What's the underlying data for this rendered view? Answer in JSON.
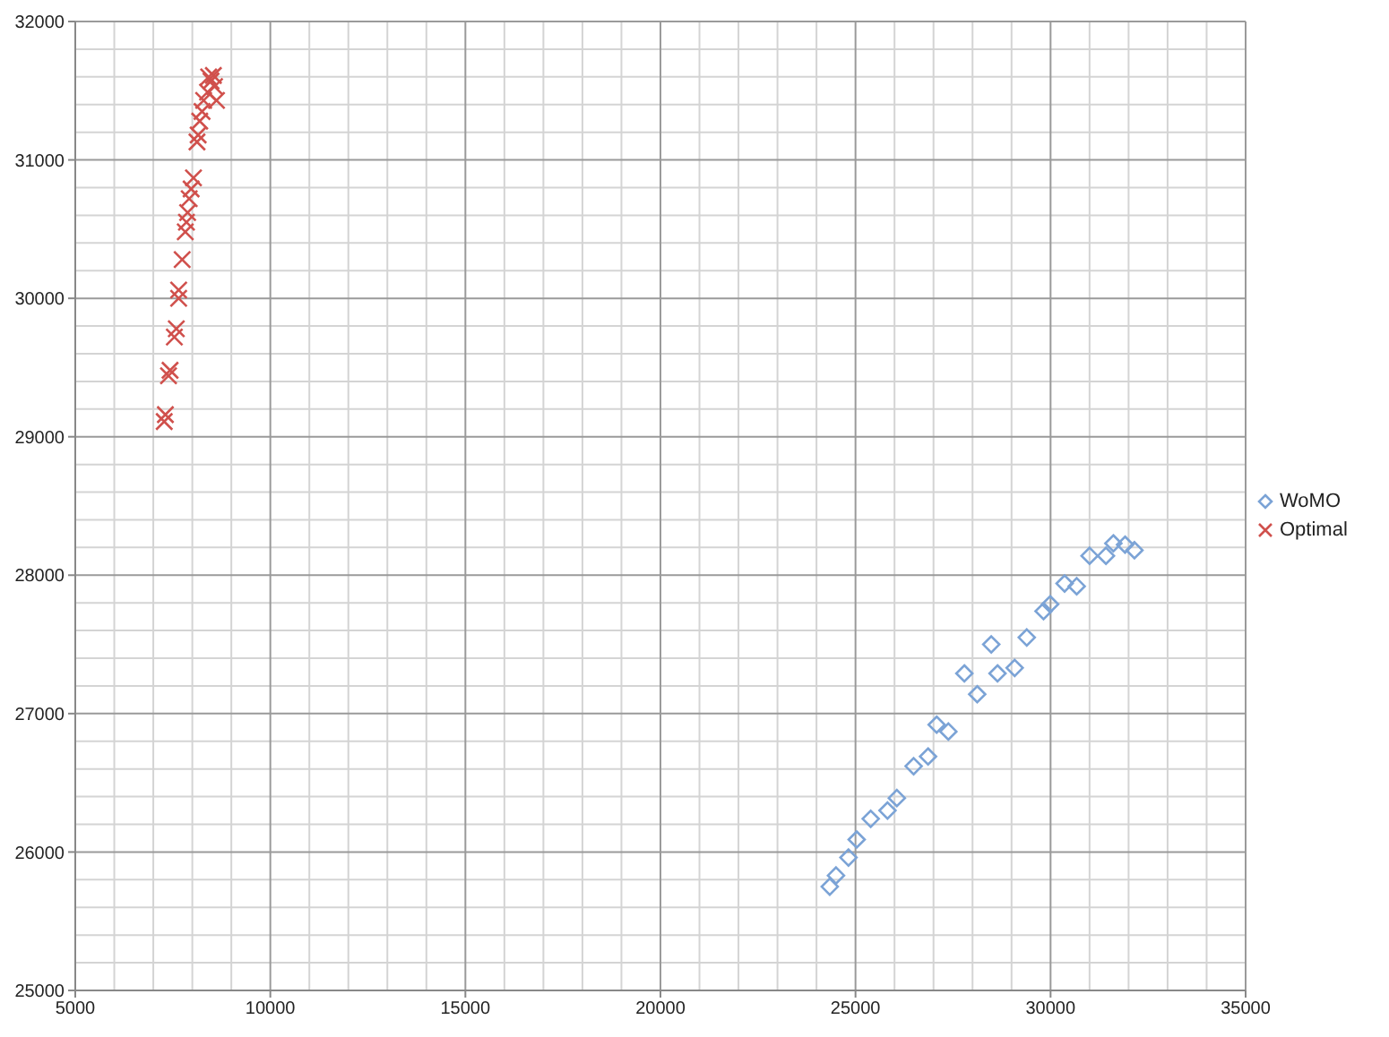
{
  "chart_data": {
    "type": "scatter",
    "xlim": [
      5000,
      35000
    ],
    "xticks": [
      5000,
      10000,
      15000,
      20000,
      25000,
      30000,
      35000
    ],
    "ylim": [
      25000,
      32000
    ],
    "yticks": [
      25000,
      26000,
      27000,
      28000,
      29000,
      30000,
      31000,
      32000
    ],
    "grid": true,
    "legend": "right",
    "series": [
      {
        "name": "WoMO",
        "color": "#7ba3d6",
        "marker": "diamond",
        "x": [
          24340,
          24500,
          24820,
          25030,
          25390,
          25820,
          26060,
          26490,
          26860,
          27080,
          27380,
          27790,
          28120,
          28480,
          28640,
          29080,
          29390,
          29820,
          29990,
          30360,
          30670,
          31000,
          31420,
          31610,
          31910,
          32150
        ],
        "values": [
          25750,
          25830,
          25960,
          26090,
          26240,
          26300,
          26390,
          26620,
          26690,
          26920,
          26870,
          27290,
          27140,
          27500,
          27290,
          27330,
          27550,
          27740,
          27790,
          27940,
          27920,
          28140,
          28140,
          28230,
          28220,
          28180
        ]
      },
      {
        "name": "Optimal",
        "color": "#d0504c",
        "marker": "cross",
        "x": [
          7280,
          7310,
          7390,
          7430,
          7540,
          7590,
          7650,
          7650,
          7740,
          7820,
          7850,
          7880,
          7920,
          7970,
          8030,
          8120,
          8150,
          8190,
          8250,
          8290,
          8390,
          8480,
          8540,
          8620,
          8420,
          8570
        ],
        "values": [
          29110,
          29160,
          29440,
          29480,
          29720,
          29780,
          30000,
          30060,
          30280,
          30480,
          30550,
          30620,
          30720,
          30790,
          30870,
          31130,
          31180,
          31280,
          31350,
          31430,
          31490,
          31570,
          31610,
          31430,
          31600,
          31530
        ]
      }
    ]
  }
}
